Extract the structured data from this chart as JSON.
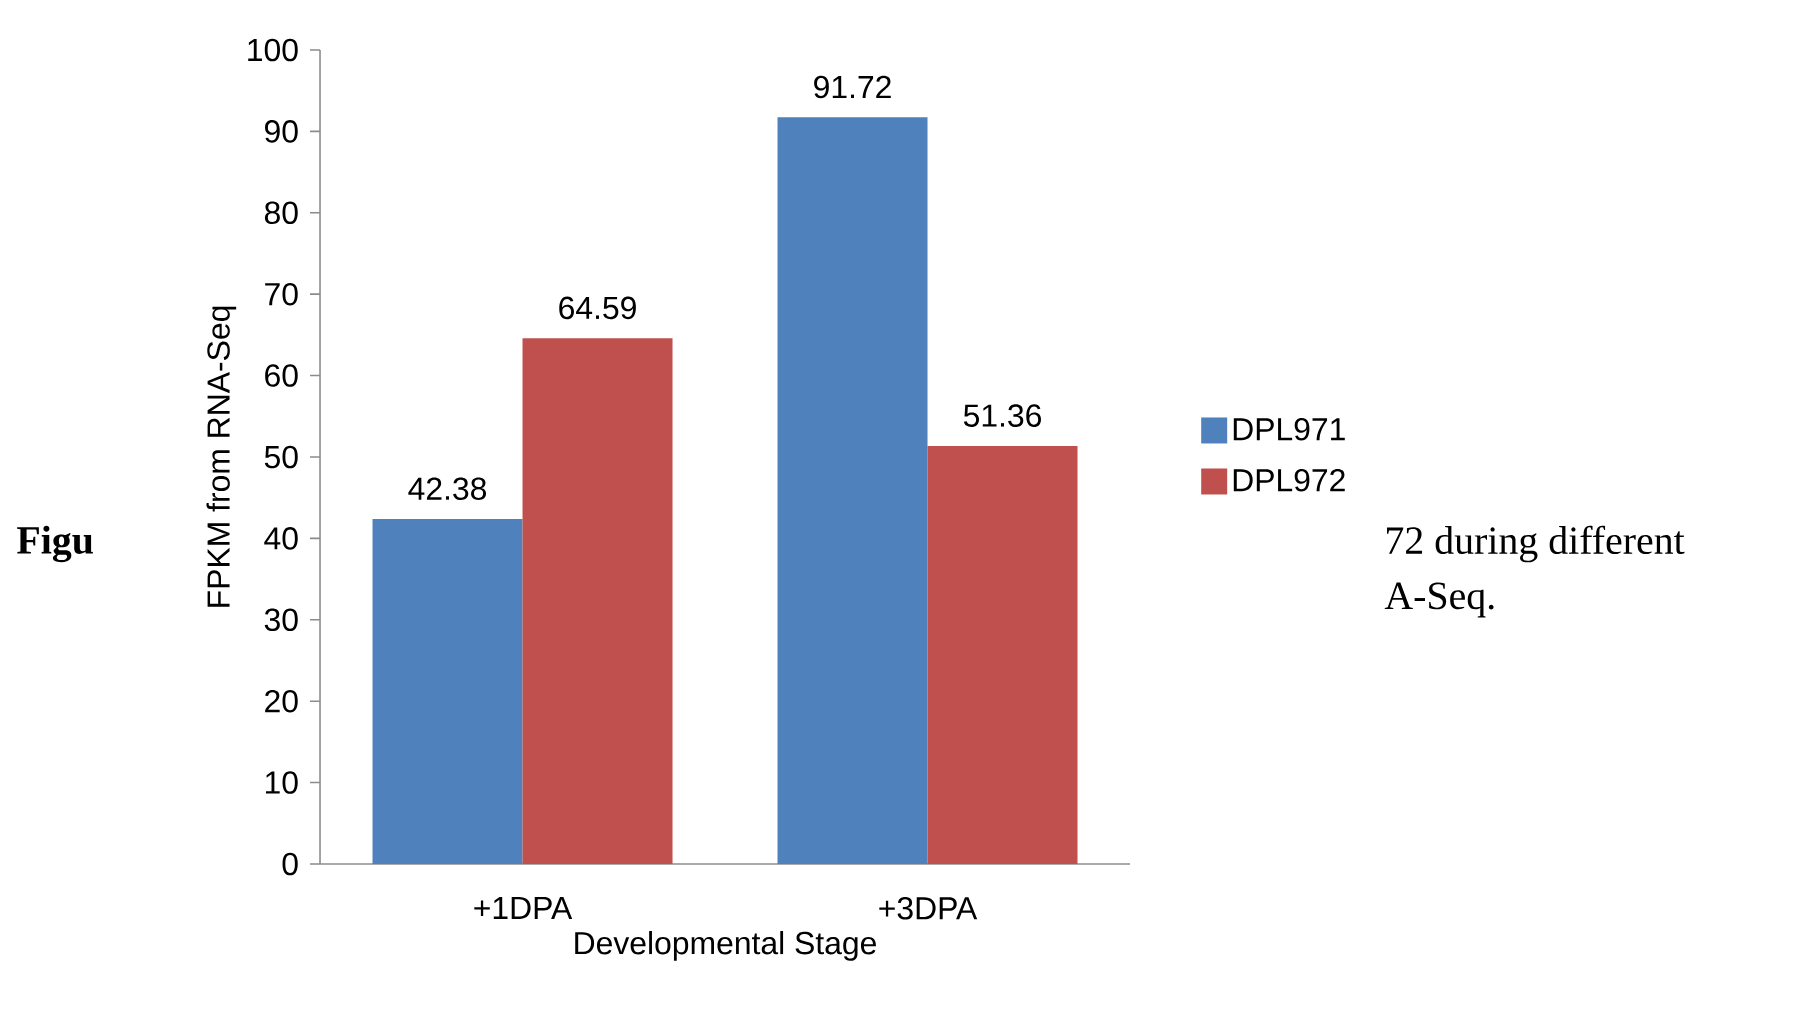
{
  "chart_data": {
    "type": "bar",
    "categories": [
      "+1DPA",
      "+3DPA"
    ],
    "series": [
      {
        "name": "DPL971",
        "color": "#4f81bd",
        "values": [
          42.38,
          91.72
        ]
      },
      {
        "name": "DPL972",
        "color": "#c0504d",
        "values": [
          64.59,
          51.36
        ]
      }
    ],
    "xlabel": "Developmental Stage",
    "ylabel": "FPKM from RNA-Seq",
    "ylim": [
      0,
      100
    ],
    "yticks": [
      0,
      10,
      20,
      30,
      40,
      50,
      60,
      70,
      80,
      90,
      100
    ],
    "data_labels": true,
    "legend": "right",
    "grid": false,
    "annotations": [
      "Figu",
      "72 during different",
      "A-Seq."
    ]
  }
}
